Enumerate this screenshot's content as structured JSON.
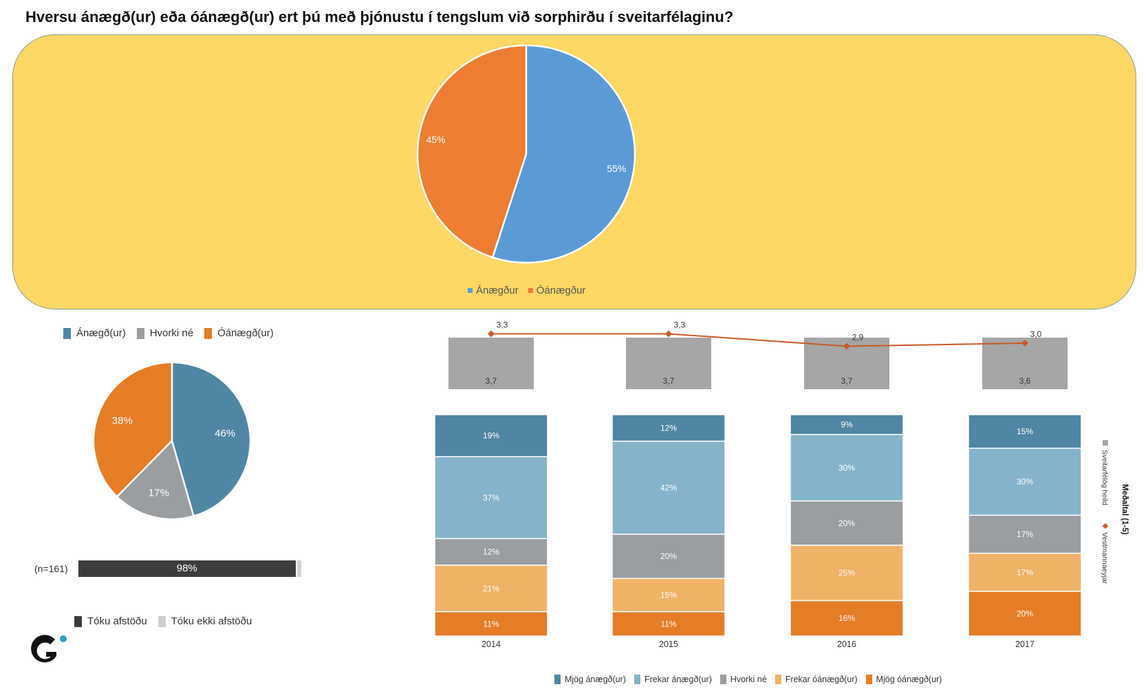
{
  "title": "Hversu ánægð(ur) eða óánægð(ur) ert þú með þjónustu í tengslum við sorphirðu í sveitarfélaginu?",
  "colors": {
    "panel_bg": "#fdd865",
    "blue": "#5b9bd5",
    "orange": "#ed7d31",
    "teal_dark": "#4f86a3",
    "teal_light": "#85b3cb",
    "gray": "#9a9ea1",
    "light_orange": "#efb267",
    "dark_orange": "#e57c26",
    "line": "#c95a26",
    "mean_box": "#a6a6a6"
  },
  "top_legend": [
    {
      "label": "Ánægður",
      "color": "#5b9bd5"
    },
    {
      "label": "Óánægður",
      "color": "#ed7d31"
    }
  ],
  "left_legend": [
    {
      "label": "Ánægð(ur)",
      "color": "#4f86a3"
    },
    {
      "label": "Hvorki né",
      "color": "#9a9ea1"
    },
    {
      "label": "Óánægð(ur)",
      "color": "#e57c26"
    }
  ],
  "response": {
    "n_label": "(n=161)",
    "took_position_pct": 98,
    "label": "98%"
  },
  "response_legend": [
    {
      "label": "Tóku afstöðu",
      "color": "#3d3d3d"
    },
    {
      "label": "Tóku ekki afstöðu",
      "color": "#cfcfcf"
    }
  ],
  "bottom_legend": [
    {
      "label": "Mjög ánægð(ur)",
      "color": "#4f86a3"
    },
    {
      "label": "Frekar ánægð(ur)",
      "color": "#85b3cb"
    },
    {
      "label": "Hvorki né",
      "color": "#9a9ea1"
    },
    {
      "label": "Frekar óánægð(ur)",
      "color": "#efb267"
    },
    {
      "label": "Mjög óánægð(ur)",
      "color": "#e57c26"
    }
  ],
  "side_legend": {
    "title": "Meðaltal (1-5)",
    "items": [
      {
        "label": "Sveitarfélög heild",
        "color": "#a6a6a6"
      },
      {
        "label": "Vestmannaeyjar",
        "color": "#c95a26"
      }
    ]
  },
  "chart_data": [
    {
      "type": "pie",
      "title": "Hversu ánægð(ur) eða óánægð(ur) ert þú með þjónustu í tengslum við sorphirðu í sveitarfélaginu?",
      "categories": [
        "Ánægður",
        "Óánægður"
      ],
      "values": [
        55,
        45
      ],
      "labels": [
        "55%",
        "45%"
      ]
    },
    {
      "type": "pie",
      "categories": [
        "Ánægð(ur)",
        "Hvorki né",
        "Óánægð(ur)"
      ],
      "values": [
        46,
        17,
        38
      ],
      "labels": [
        "46%",
        "17%",
        "38%"
      ]
    },
    {
      "type": "bar",
      "stacked": true,
      "percent": true,
      "categories": [
        "2014",
        "2015",
        "2016",
        "2017"
      ],
      "series": [
        {
          "name": "Mjög ánægð(ur)",
          "values": [
            19,
            12,
            9,
            15
          ],
          "labels": [
            "19%",
            "12%",
            "9%",
            "15%"
          ]
        },
        {
          "name": "Frekar ánægð(ur)",
          "values": [
            37,
            42,
            30,
            30
          ],
          "labels": [
            "37%",
            "42%",
            "30%",
            "30%"
          ]
        },
        {
          "name": "Hvorki né",
          "values": [
            12,
            20,
            20,
            17
          ],
          "labels": [
            "12%",
            "20%",
            "20%",
            "17%"
          ]
        },
        {
          "name": "Frekar óánægð(ur)",
          "values": [
            21,
            15,
            25,
            17
          ],
          "labels": [
            "21%",
            "15%",
            "25%",
            "17%"
          ]
        },
        {
          "name": "Mjög óánægð(ur)",
          "values": [
            11,
            11,
            16,
            20
          ],
          "labels": [
            "11%",
            "11%",
            "16%",
            "20%"
          ]
        }
      ]
    },
    {
      "type": "line",
      "title": "Meðaltal (1-5)",
      "categories": [
        "2014",
        "2015",
        "2016",
        "2017"
      ],
      "series": [
        {
          "name": "Sveitarfélög heild",
          "values": [
            3.7,
            3.7,
            3.7,
            3.6
          ],
          "labels": [
            "3,7",
            "3,7",
            "3,7",
            "3,6"
          ]
        },
        {
          "name": "Vestmannaeyjar",
          "values": [
            3.3,
            3.3,
            2.9,
            3.0
          ],
          "labels": [
            "3,3",
            "3,3",
            "2,9",
            "3,0"
          ]
        }
      ]
    }
  ]
}
